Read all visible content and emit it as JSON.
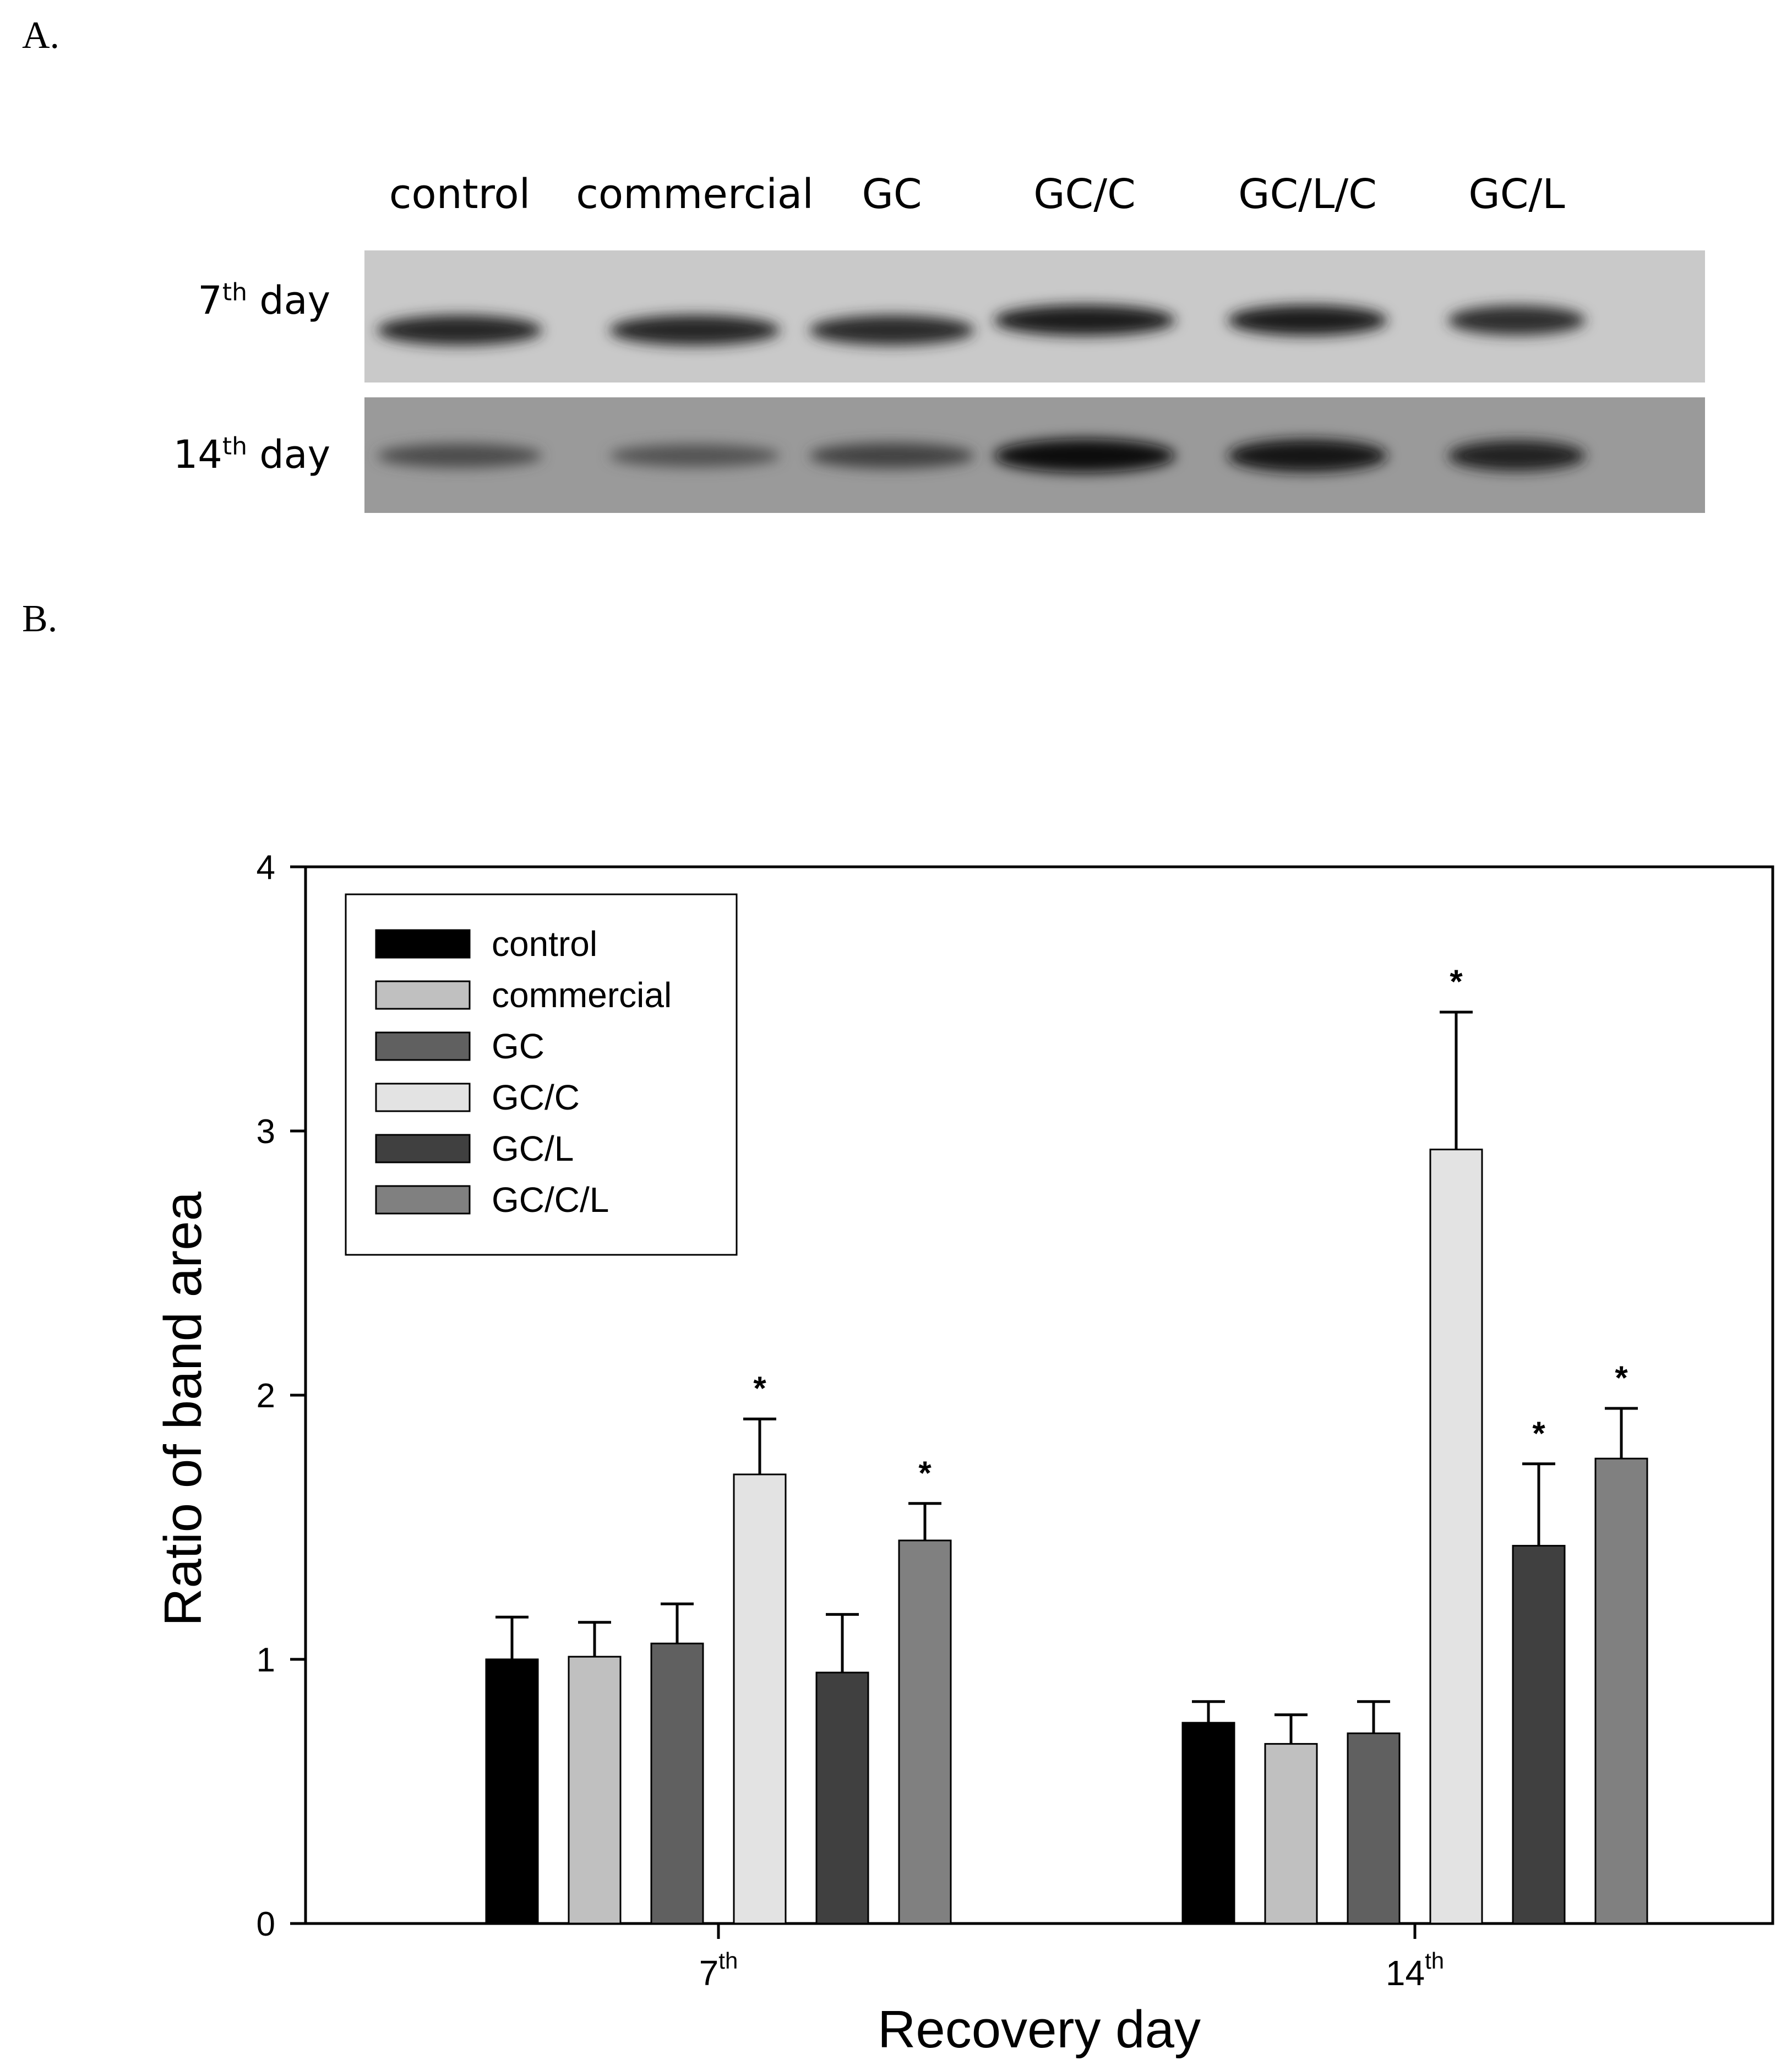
{
  "panel_a": {
    "letter": "A.",
    "lanes": [
      "control",
      "commercial",
      "GC",
      "GC/C",
      "GC/L/C",
      "GC/L"
    ],
    "rows": [
      {
        "num": "7",
        "sup": "th",
        "suffix": " day",
        "band_intensity": [
          0.82,
          0.84,
          0.8,
          0.9,
          0.88,
          0.78
        ]
      },
      {
        "num": "14",
        "sup": "th",
        "suffix": " day",
        "band_intensity": [
          0.55,
          0.5,
          0.62,
          1.0,
          0.95,
          0.85
        ]
      }
    ]
  },
  "panel_b": {
    "letter": "B."
  },
  "chart_data": {
    "type": "bar",
    "xlabel": "Recovery day",
    "ylabel": "Ratio of band area",
    "categories": [
      {
        "num": "7",
        "sup": "th"
      },
      {
        "num": "14",
        "sup": "th"
      }
    ],
    "ylim": [
      0,
      4
    ],
    "yticks": [
      0,
      1,
      2,
      3,
      4
    ],
    "legend_position": "top-left",
    "grid": false,
    "series": [
      {
        "name": "control",
        "color": "#000000",
        "values": [
          1.0,
          0.76
        ],
        "errors": [
          0.16,
          0.08
        ],
        "significant": [
          false,
          false
        ]
      },
      {
        "name": "commercial",
        "color": "#c0c0c0",
        "values": [
          1.01,
          0.68
        ],
        "errors": [
          0.13,
          0.11
        ],
        "significant": [
          false,
          false
        ]
      },
      {
        "name": "GC",
        "color": "#606060",
        "values": [
          1.06,
          0.72
        ],
        "errors": [
          0.15,
          0.12
        ],
        "significant": [
          false,
          false
        ]
      },
      {
        "name": "GC/C",
        "color": "#e3e3e3",
        "values": [
          1.7,
          2.93
        ],
        "errors": [
          0.21,
          0.52
        ],
        "significant": [
          true,
          true
        ]
      },
      {
        "name": "GC/L",
        "color": "#404040",
        "values": [
          0.95,
          1.43
        ],
        "errors": [
          0.22,
          0.31
        ],
        "significant": [
          false,
          true
        ]
      },
      {
        "name": "GC/C/L",
        "color": "#808080",
        "values": [
          1.45,
          1.76
        ],
        "errors": [
          0.14,
          0.19
        ],
        "significant": [
          true,
          true
        ]
      }
    ],
    "significance_marker": "*"
  }
}
